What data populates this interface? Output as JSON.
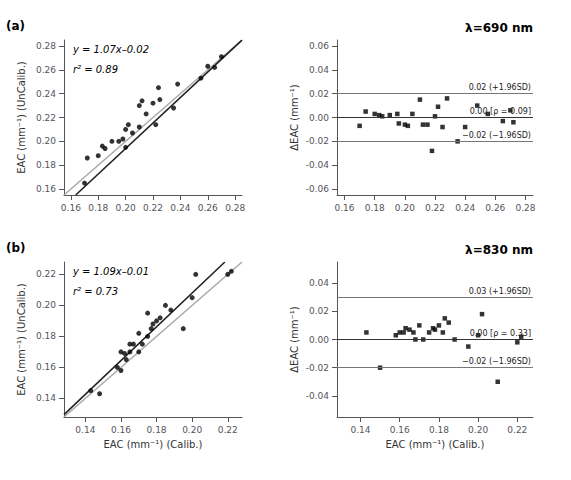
{
  "chart_data": [
    {
      "type": "scatter",
      "panel_label": "(a)",
      "xlabel": "",
      "ylabel": "EAC (mm⁻¹) (UnCalib.)",
      "annotations": [
        "y = 1.07x–0.02",
        "r² = 0.89"
      ],
      "xlim": [
        0.155,
        0.285
      ],
      "ylim": [
        0.155,
        0.285
      ],
      "xticks": [
        0.16,
        0.18,
        {
          "value": 0.2,
          "label": "0.20"
        },
        0.22,
        0.24,
        0.26,
        0.28
      ],
      "yticks": [
        0.16,
        0.18,
        {
          "value": 0.2,
          "label": "0.20"
        },
        0.22,
        0.24,
        0.26,
        0.28
      ],
      "grid": false,
      "series": [
        {
          "type": "line",
          "color": "#aaaaaa",
          "x": [
            0.155,
            0.285
          ],
          "values": [
            0.155,
            0.285
          ]
        },
        {
          "type": "line",
          "color": "#222222",
          "x": [
            0.16355,
            0.285
          ],
          "values": [
            0.155,
            0.28495
          ]
        },
        {
          "type": "scatter",
          "marker": "circle",
          "color": "#000000",
          "x": [
            0.17,
            0.172,
            0.18,
            0.183,
            0.185,
            0.19,
            0.195,
            0.198,
            0.2,
            0.2,
            0.202,
            0.205,
            0.21,
            0.21,
            0.212,
            0.215,
            0.22,
            0.222,
            0.224,
            0.225,
            0.235,
            0.238,
            0.255,
            0.26,
            0.265,
            0.27
          ],
          "values": [
            0.165,
            0.186,
            0.188,
            0.196,
            0.194,
            0.2,
            0.2,
            0.202,
            0.195,
            0.21,
            0.214,
            0.207,
            0.212,
            0.23,
            0.234,
            0.223,
            0.232,
            0.214,
            0.245,
            0.235,
            0.228,
            0.248,
            0.253,
            0.263,
            0.262,
            0.271
          ]
        }
      ]
    },
    {
      "type": "scatter",
      "title": "λ=690 nm",
      "xlabel": "",
      "ylabel": "ΔEAC (mm⁻¹)",
      "xlim": [
        0.155,
        0.285
      ],
      "ylim": [
        -0.065,
        0.065
      ],
      "xticks": [
        0.16,
        0.18,
        {
          "value": 0.2,
          "label": "0.20"
        },
        0.22,
        0.24,
        0.26,
        0.28
      ],
      "yticks": [
        -0.06,
        -0.04,
        -0.02,
        {
          "value": 0,
          "label": "0.00"
        },
        0.02,
        0.04,
        0.06
      ],
      "grid": false,
      "hlines": [
        {
          "value": 0.02,
          "label": "0.02 (+1.96SD)",
          "color": "#777777"
        },
        {
          "value": -0.02,
          "label": "−0.02 (−1.96SD)",
          "color": "#777777"
        },
        {
          "value": 0.0,
          "label": "0.00 [ρ = 0.09]",
          "color": "#333333"
        }
      ],
      "series": [
        {
          "type": "scatter",
          "marker": "square",
          "color": "#000000",
          "x": [
            0.17,
            0.174,
            0.18,
            0.183,
            0.185,
            0.19,
            0.195,
            0.196,
            0.2,
            0.202,
            0.205,
            0.21,
            0.212,
            0.215,
            0.218,
            0.22,
            0.222,
            0.225,
            0.228,
            0.235,
            0.24,
            0.248,
            0.255,
            0.265,
            0.27,
            0.272
          ],
          "values": [
            -0.007,
            0.005,
            0.003,
            0.002,
            0.001,
            0.002,
            0.003,
            -0.005,
            -0.006,
            -0.007,
            0.003,
            0.015,
            -0.006,
            -0.006,
            -0.028,
            0.001,
            0.009,
            -0.008,
            0.016,
            -0.02,
            -0.008,
            0.01,
            0.003,
            -0.003,
            0.006,
            -0.004
          ]
        }
      ]
    },
    {
      "type": "scatter",
      "panel_label": "(b)",
      "xlabel": "EAC (mm⁻¹) (Calib.)",
      "ylabel": "EAC (mm⁻¹) (UnCalib.)",
      "annotations": [
        "y = 1.09x–0.01",
        "r² = 0.73"
      ],
      "xlim": [
        0.128,
        0.228
      ],
      "ylim": [
        0.128,
        0.228
      ],
      "xticks": [
        0.14,
        0.16,
        0.18,
        {
          "value": 0.2,
          "label": "0.20"
        },
        0.22
      ],
      "yticks": [
        0.14,
        0.16,
        0.18,
        {
          "value": 0.2,
          "label": "0.20"
        },
        0.22
      ],
      "grid": false,
      "series": [
        {
          "type": "line",
          "color": "#aaaaaa",
          "x": [
            0.128,
            0.228
          ],
          "values": [
            0.128,
            0.228
          ]
        },
        {
          "type": "line",
          "color": "#222222",
          "x": [
            0.128,
            0.21835
          ],
          "values": [
            0.12952,
            0.228
          ]
        },
        {
          "type": "scatter",
          "marker": "circle",
          "color": "#000000",
          "x": [
            0.143,
            0.148,
            0.158,
            0.16,
            0.16,
            0.162,
            0.163,
            0.165,
            0.165,
            0.167,
            0.17,
            0.17,
            0.172,
            0.175,
            0.175,
            0.177,
            0.178,
            0.18,
            0.182,
            0.185,
            0.188,
            0.195,
            0.2,
            0.202,
            0.22,
            0.222
          ],
          "values": [
            0.145,
            0.143,
            0.16,
            0.158,
            0.17,
            0.169,
            0.165,
            0.17,
            0.175,
            0.175,
            0.17,
            0.182,
            0.175,
            0.18,
            0.195,
            0.185,
            0.188,
            0.19,
            0.192,
            0.2,
            0.197,
            0.185,
            0.205,
            0.22,
            0.22,
            0.222
          ]
        }
      ]
    },
    {
      "type": "scatter",
      "title": "λ=830 nm",
      "xlabel": "EAC (mm⁻¹) (Calib.)",
      "ylabel": "ΔEAC (mm⁻¹)",
      "xlim": [
        0.128,
        0.228
      ],
      "ylim": [
        -0.055,
        0.055
      ],
      "xticks": [
        0.14,
        0.16,
        0.18,
        {
          "value": 0.2,
          "label": "0.20"
        },
        0.22
      ],
      "yticks": [
        -0.04,
        -0.02,
        {
          "value": 0,
          "label": "0.00"
        },
        0.02,
        0.04
      ],
      "grid": false,
      "hlines": [
        {
          "value": 0.03,
          "label": "0.03 (+1.96SD)",
          "color": "#777777"
        },
        {
          "value": -0.02,
          "label": "−0.02 (−1.96SD)",
          "color": "#777777"
        },
        {
          "value": 0.0,
          "label": "0.00 [ρ = 0.33]",
          "color": "#333333"
        }
      ],
      "series": [
        {
          "type": "scatter",
          "marker": "square",
          "color": "#000000",
          "x": [
            0.143,
            0.15,
            0.158,
            0.16,
            0.162,
            0.163,
            0.165,
            0.167,
            0.168,
            0.17,
            0.172,
            0.175,
            0.177,
            0.178,
            0.18,
            0.182,
            0.183,
            0.185,
            0.188,
            0.195,
            0.2,
            0.202,
            0.21,
            0.22,
            0.222
          ],
          "values": [
            0.005,
            -0.02,
            0.003,
            0.005,
            0.005,
            0.008,
            0.007,
            0.005,
            0.0,
            0.01,
            0.0,
            0.005,
            0.008,
            0.007,
            0.01,
            0.005,
            0.015,
            0.012,
            0.0,
            -0.005,
            0.003,
            0.018,
            -0.03,
            -0.002,
            0.002
          ]
        }
      ]
    }
  ]
}
